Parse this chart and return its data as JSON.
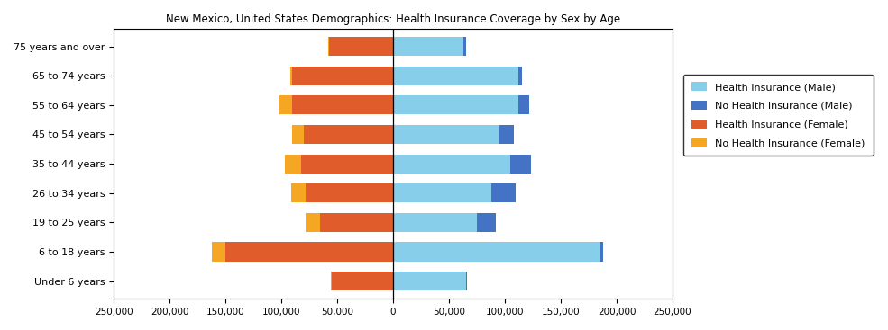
{
  "title": "New Mexico, United States Demographics: Health Insurance Coverage by Sex by Age",
  "age_groups": [
    "Under 6 years",
    "6 to 18 years",
    "19 to 25 years",
    "26 to 34 years",
    "35 to 44 years",
    "45 to 54 years",
    "55 to 64 years",
    "65 to 74 years",
    "75 years and over"
  ],
  "health_ins_female": [
    55000,
    150000,
    65000,
    78000,
    82000,
    80000,
    90000,
    90000,
    57000
  ],
  "no_health_ins_female": [
    1000,
    12000,
    13000,
    13000,
    15000,
    10000,
    12000,
    2000,
    1000
  ],
  "health_ins_male": [
    65000,
    185000,
    75000,
    88000,
    105000,
    95000,
    112000,
    112000,
    63000
  ],
  "no_health_ins_male": [
    1000,
    3000,
    17000,
    22000,
    18000,
    13000,
    10000,
    3000,
    2000
  ],
  "color_health_ins_male": "#87CEEB",
  "color_no_health_ins_male": "#4472C4",
  "color_health_ins_female": "#E05C2A",
  "color_no_health_ins_female": "#F5A623",
  "xlim": 250000,
  "legend_labels": [
    "Health Insurance (Male)",
    "No Health Insurance (Male)",
    "Health Insurance (Female)",
    "No Health Insurance (Female)"
  ]
}
